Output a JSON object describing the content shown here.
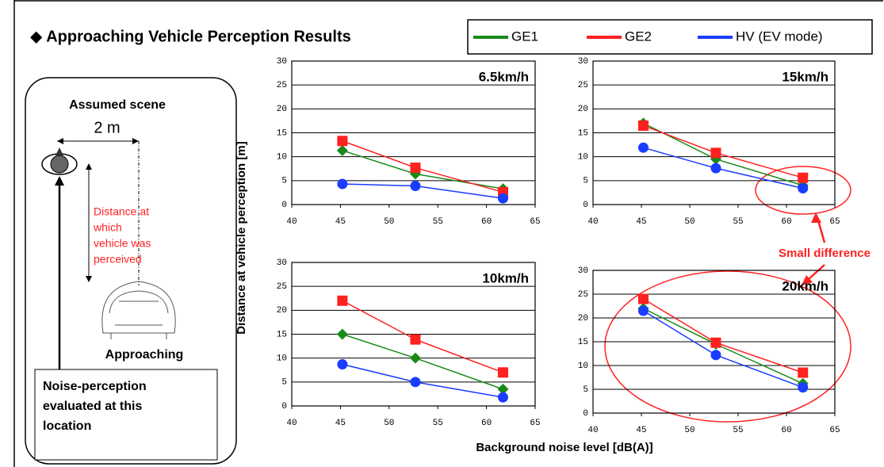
{
  "title": "◆ Approaching Vehicle Perception Results",
  "scene": {
    "title": "Assumed scene",
    "distance": "2 m",
    "perceived_label": [
      "Distance at",
      "which",
      "vehicle was",
      "perceived"
    ],
    "approaching": "Approaching",
    "location_label": [
      "Noise-perception",
      "evaluated at this",
      "location"
    ]
  },
  "annotation": "Small difference",
  "y_axis_label": "Distance at vehicle perception [m]",
  "x_axis_label": "Background noise level [dB(A)]",
  "chart_data": [
    {
      "type": "line",
      "title": "6.5km/h",
      "x": [
        45.2,
        52.7,
        61.7
      ],
      "series": [
        {
          "name": "GE1",
          "color": "#1a8a1a",
          "marker": "diamond",
          "values": [
            11.3,
            6.4,
            3.3
          ]
        },
        {
          "name": "GE2",
          "color": "#ff2020",
          "marker": "square",
          "values": [
            13.3,
            7.7,
            2.6
          ]
        },
        {
          "name": "HV (EV mode)",
          "color": "#1a3cff",
          "marker": "circle",
          "values": [
            4.3,
            3.9,
            1.3
          ]
        }
      ],
      "xlim": [
        40,
        65
      ],
      "ylim": [
        0,
        30
      ],
      "xticks": [
        40,
        45,
        50,
        55,
        60,
        65
      ],
      "yticks": [
        0,
        5,
        10,
        15,
        20,
        25,
        30
      ],
      "grid": true
    },
    {
      "type": "line",
      "title": "15km/h",
      "x": [
        45.2,
        52.7,
        61.7
      ],
      "series": [
        {
          "color": "#1a8a1a",
          "marker": "diamond",
          "values": [
            17,
            9.5,
            4
          ]
        },
        {
          "color": "#ff2020",
          "marker": "square",
          "values": [
            16.5,
            10.8,
            5.6
          ]
        },
        {
          "color": "#1a3cff",
          "marker": "circle",
          "values": [
            11.9,
            7.6,
            3.4
          ]
        }
      ],
      "xlim": [
        40,
        65
      ],
      "ylim": [
        0,
        30
      ],
      "xticks": [
        40,
        45,
        50,
        55,
        60,
        65
      ],
      "yticks": [
        0,
        5,
        10,
        15,
        20,
        25,
        30
      ],
      "grid": true
    },
    {
      "type": "line",
      "title": "10km/h",
      "x": [
        45.2,
        52.7,
        61.7
      ],
      "series": [
        {
          "color": "#1a8a1a",
          "marker": "diamond",
          "values": [
            15,
            10,
            3.5
          ]
        },
        {
          "color": "#ff2020",
          "marker": "square",
          "values": [
            22,
            13.9,
            7
          ]
        },
        {
          "color": "#1a3cff",
          "marker": "circle",
          "values": [
            8.7,
            5,
            1.8
          ]
        }
      ],
      "xlim": [
        40,
        65
      ],
      "ylim": [
        0,
        30
      ],
      "xticks": [
        40,
        45,
        50,
        55,
        60,
        65
      ],
      "yticks": [
        0,
        5,
        10,
        15,
        20,
        25,
        30
      ],
      "grid": true
    },
    {
      "type": "line",
      "title": "20km/h",
      "x": [
        45.2,
        52.7,
        61.7
      ],
      "series": [
        {
          "color": "#1a8a1a",
          "marker": "diamond",
          "values": [
            22,
            14.5,
            6.2
          ]
        },
        {
          "color": "#ff2020",
          "marker": "square",
          "values": [
            24,
            14.8,
            8.5
          ]
        },
        {
          "color": "#1a3cff",
          "marker": "circle",
          "values": [
            21.5,
            12.2,
            5.4
          ]
        }
      ],
      "xlim": [
        40,
        65
      ],
      "ylim": [
        0,
        30
      ],
      "xticks": [
        40,
        45,
        50,
        55,
        60,
        65
      ],
      "yticks": [
        0,
        5,
        10,
        15,
        20,
        25,
        30
      ],
      "grid": true
    }
  ]
}
